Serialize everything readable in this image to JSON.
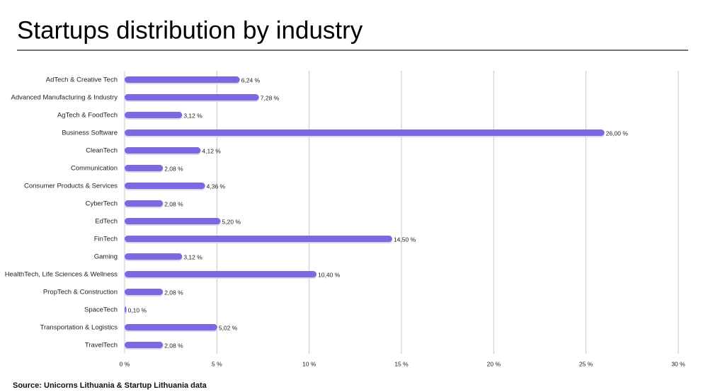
{
  "chart_data": {
    "type": "bar",
    "orientation": "horizontal",
    "title": "Startups distribution by industry",
    "source": "Source: Unicorns Lithuania & Startup Lithuania data",
    "categories": [
      "AdTech & Creative Tech",
      "Advanced Manufacturing & Industry",
      "AgTech & FoodTech",
      "Business Software",
      "CleanTech",
      "Communication",
      "Consumer Products & Services",
      "CyberTech",
      "EdTech",
      "FinTech",
      "Gaming",
      "HealthTech, Life Sciences & Wellness",
      "PropTech & Construction",
      "SpaceTech",
      "Transportation & Logistics",
      "TravelTech"
    ],
    "values": [
      6.24,
      7.28,
      3.12,
      26.0,
      4.12,
      2.08,
      4.36,
      2.08,
      5.2,
      14.5,
      3.12,
      10.4,
      2.08,
      0.1,
      5.02,
      2.08
    ],
    "value_labels": [
      "6,24 %",
      "7,28 %",
      "3,12 %",
      "26,00 %",
      "4,12 %",
      "2,08 %",
      "4,36 %",
      "2,08 %",
      "5,20 %",
      "14,50 %",
      "3,12 %",
      "10,40 %",
      "2,08 %",
      "0,10 %",
      "5,02 %",
      "2,08 %"
    ],
    "color": "#7b69df",
    "xlim": [
      0,
      30
    ],
    "xticks": [
      {
        "value": 0,
        "label": "0 %"
      },
      {
        "value": 5,
        "label": "5 %"
      },
      {
        "value": 10,
        "label": "10 %"
      },
      {
        "value": 15,
        "label": "15 %"
      },
      {
        "value": 20,
        "label": "20 %"
      },
      {
        "value": 25,
        "label": "25 %"
      },
      {
        "value": 30,
        "label": "30 %"
      }
    ],
    "grid": true
  }
}
